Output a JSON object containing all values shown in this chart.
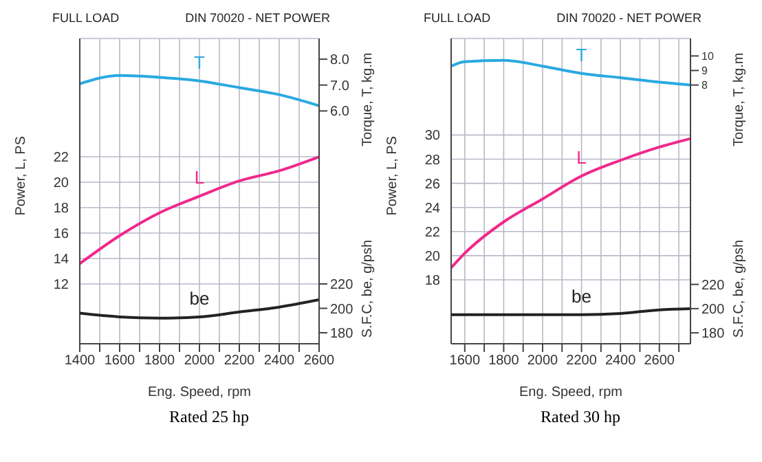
{
  "chart_data": [
    {
      "type": "line",
      "title": "FULL LOAD",
      "subtitle": "DIN 70020 - NET POWER",
      "xlabel": "Eng. Speed, rpm",
      "ylabel": "Power, L, PS",
      "y2label": "Torque, T, kg.m",
      "y3label": "S.F.C, be, g/psh",
      "annotations": [
        "Rated 25 hp"
      ],
      "x": [
        1400,
        1600,
        1800,
        2000,
        2200,
        2400,
        2600
      ],
      "xlim": [
        1400,
        2600
      ],
      "xticks": [
        1400,
        {
          "value": 1500,
          "label": null
        },
        1600,
        {
          "value": 1700,
          "label": null
        },
        1800,
        {
          "value": 1900,
          "label": null
        },
        2000,
        {
          "value": 2100,
          "label": null
        },
        2200,
        {
          "value": 2300,
          "label": null
        },
        2400,
        {
          "value": 2500,
          "label": null
        },
        2600
      ],
      "ylim": [
        7.3,
        31.3
      ],
      "yticks": [
        12,
        14,
        16,
        18,
        20,
        22
      ],
      "y2lim": [
        -3,
        8.8
      ],
      "y2ticks": [
        {
          "value": 6,
          "label": "6.0"
        },
        {
          "value": 7,
          "label": "7.0"
        },
        {
          "value": 8,
          "label": "8.0"
        }
      ],
      "y3lim": [
        171,
        421
      ],
      "y3ticks": [
        180,
        200,
        220
      ],
      "grid": true,
      "series": [
        {
          "name": "T",
          "color": "#2aa9e0",
          "axis": "y2",
          "values": [
            7.05,
            7.37,
            7.3,
            7.16,
            6.9,
            6.63,
            6.2
          ]
        },
        {
          "name": "L",
          "color": "#f0288c",
          "axis": "y",
          "values": [
            13.6,
            15.8,
            17.6,
            18.9,
            20.1,
            20.9,
            22.0
          ]
        },
        {
          "name": "be",
          "color": "#222222",
          "axis": "y3",
          "values": [
            196,
            193,
            192,
            193,
            197,
            201,
            207
          ]
        }
      ]
    },
    {
      "type": "line",
      "title": "FULL LOAD",
      "subtitle": "DIN 70020 - NET POWER",
      "xlabel": "Eng. Speed, rpm",
      "ylabel": "Power, L, PS",
      "y2label": "Torque, T, kg.m",
      "y3label": "S.F.C, be, g/psh",
      "annotations": [
        "Rated 30 hp"
      ],
      "x": [
        1530,
        1600,
        1800,
        2000,
        2200,
        2400,
        2600,
        2760
      ],
      "xlim": [
        1530,
        2760
      ],
      "xticks": [
        1600,
        {
          "value": 1700,
          "label": null
        },
        1800,
        {
          "value": 1900,
          "label": null
        },
        2000,
        {
          "value": 2100,
          "label": null
        },
        2200,
        {
          "value": 2300,
          "label": null
        },
        2400,
        {
          "value": 2500,
          "label": null
        },
        2600,
        {
          "value": 2700,
          "label": null
        }
      ],
      "ylim": [
        12.7,
        38.0
      ],
      "yticks": [
        18,
        20,
        22,
        24,
        26,
        28,
        30
      ],
      "y2lim": [
        -9.8,
        11.2
      ],
      "y2ticks": [
        8,
        9,
        10
      ],
      "y3lim": [
        171,
        423
      ],
      "y3ticks": [
        180,
        200,
        220
      ],
      "grid": true,
      "series": [
        {
          "name": "T",
          "color": "#2aa9e0",
          "axis": "y2",
          "values": [
            9.3,
            9.6,
            9.7,
            9.3,
            8.8,
            8.5,
            8.2,
            8.0
          ]
        },
        {
          "name": "L",
          "color": "#f0288c",
          "axis": "y",
          "values": [
            19.0,
            20.2,
            22.8,
            24.7,
            26.6,
            27.9,
            29.0,
            29.7
          ]
        },
        {
          "name": "be",
          "color": "#222222",
          "axis": "y3",
          "values": [
            195,
            195,
            195,
            195,
            195,
            196,
            199,
            200
          ]
        }
      ]
    }
  ]
}
